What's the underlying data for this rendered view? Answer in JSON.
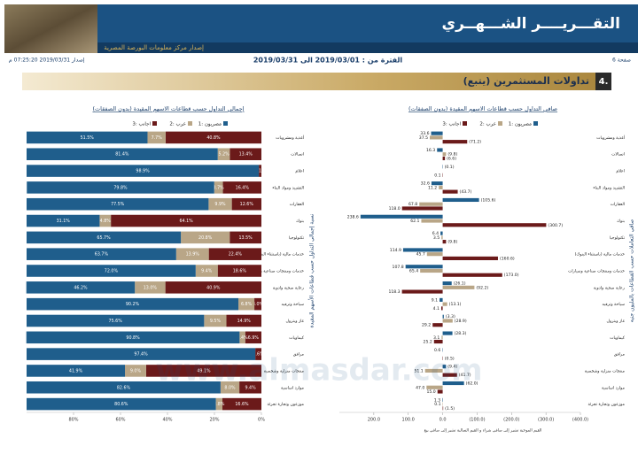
{
  "header": {
    "title": "التقـــريــــر الشـــهــري",
    "subtitle": "إصدار مركز معلومات البورصة المصرية",
    "page": "صفحة 6",
    "period": "الفترة من : 2019/03/01 الى 2019/03/31",
    "issued": "إصدار 2019/03/31 07:25:20 م",
    "section_number": "4.",
    "section": "تداولات المستثمرين (يتبع)"
  },
  "watermark": "www.almasdar.com",
  "chart_data": [
    {
      "type": "bar",
      "stacked": true,
      "title": "إجمالي التداول حسب قطاعات الاسهم المقيدة (بدون الصفقات)",
      "y_label": "نسبة إجمالي التداول حسب قطاعات الأسهم المقيدة",
      "categories": [
        "أغذية ومشروبات",
        "اتصالات",
        "اعلام",
        "التشييد ومواد البناء",
        "العقارات",
        "بنوك",
        "تكنولوجيا",
        "خدمات مالية (باستثناء البنوك)",
        "خدمات ومنتجات صناعية وسيارات",
        "رعاية صحية وادوية",
        "سياحة وترفيه",
        "غاز وبترول",
        "كيماويات",
        "مرافق",
        "منتجات منزلية وشخصية",
        "موارد اساسية",
        "موزعون وتجارة تجزئة"
      ],
      "series": [
        {
          "name": "مصريون :1",
          "color": "#1f5e8c",
          "values": [
            51.5,
            81.4,
            98.9,
            79.8,
            77.5,
            31.1,
            65.7,
            63.7,
            72.0,
            46.2,
            90.2,
            75.6,
            90.8,
            97.4,
            41.9,
            82.6,
            80.6
          ],
          "value_labels": [
            "51.5%",
            "81.4%",
            "98.9%",
            "79.8%",
            "77.5%",
            "31.1%",
            "65.7%",
            "63.7%",
            "72.0%",
            "46.2%",
            "90.2%",
            "75.6%",
            "90.8%",
            "97.4%",
            "41.9%",
            "82.6%",
            "80.6%"
          ]
        },
        {
          "name": "عرب :2",
          "color": "#b9a687",
          "values": [
            7.7,
            5.2,
            null,
            3.7,
            9.9,
            4.8,
            20.8,
            13.9,
            9.4,
            13.0,
            6.8,
            9.5,
            2.4,
            null,
            9.0,
            8.0,
            2.8
          ],
          "value_labels": [
            "7.7%",
            "5.2%",
            null,
            "3.7%",
            "9.9%",
            "4.8%",
            "20.8%",
            "13.9%",
            "9.4%",
            "13.0%",
            "6.8%",
            "9.5%",
            "2.4%",
            null,
            "9.0%",
            "8.0%",
            "2.8%"
          ]
        },
        {
          "name": "اجانب :3",
          "color": "#6b1a1a",
          "values": [
            40.8,
            13.4,
            1.1,
            16.4,
            12.6,
            64.1,
            13.5,
            22.4,
            18.6,
            40.9,
            3.0,
            14.9,
            6.9,
            2.6,
            49.1,
            9.4,
            16.6
          ],
          "value_labels": [
            "40.8%",
            "13.4%",
            "1.1%",
            "16.4%",
            "12.6%",
            "64.1%",
            "13.5%",
            "22.4%",
            "18.6%",
            "40.9%",
            "3.0%",
            "14.9%",
            "6.9%",
            "2.6%",
            "49.1%",
            "9.4%",
            "16.6%"
          ]
        }
      ],
      "xlim": [
        100,
        0
      ],
      "xticks": [
        {
          "value": 80,
          "label": "80%"
        },
        {
          "value": 60,
          "label": "60%"
        },
        {
          "value": 40,
          "label": "40%"
        },
        {
          "value": 20,
          "label": "20%"
        },
        {
          "value": 0,
          "label": "0%"
        }
      ]
    },
    {
      "type": "bar",
      "stacked": false,
      "title": "صافي التداول حسب قطاعات الاسهم المقيدة (بدون الصفقات)",
      "y_label": "صافي التعاملات حسب القطاعات بالمليون جنيه",
      "note": "القيم الموجبة تشير إلى صافي شراء و القيم السالبة تشير إلى صافي بيع",
      "categories": [
        "أغذية ومشروبات",
        "اتصالات",
        "اعلام",
        "التشييد ومواد البناء",
        "العقارات",
        "بنوك",
        "تكنولوجيا",
        "خدمات مالية (باستثناء البنوك)",
        "خدمات ومنتجات صناعية وسيارات",
        "رعاية صحية وادوية",
        "سياحة وترفيه",
        "غاز وبترول",
        "كيماويات",
        "مرافق",
        "منتجات منزلية وشخصية",
        "موارد اساسية",
        "موزعون وتجارة تجزئة"
      ],
      "series": [
        {
          "name": "مصريون :1",
          "color": "#1f5e8c",
          "values": [
            33.6,
            16.3,
            -0.1,
            32.6,
            -105.6,
            238.6,
            6.4,
            114.9,
            107.8,
            -26.1,
            9.1,
            -3.3,
            -28.3,
            0.6,
            -9.4,
            -62.0,
            1.3
          ],
          "value_labels": [
            "33.6",
            "16.3",
            "(0.1)",
            "32.6",
            "(105.6)",
            "238.6",
            "6.4",
            "114.9",
            "107.8",
            "(26.1)",
            "9.1",
            "(3.3)",
            "(28.3)",
            "0.6",
            "(9.4)",
            "(62.0)",
            "1.3"
          ]
        },
        {
          "name": "عرب :2",
          "color": "#b9a687",
          "values": [
            37.5,
            -9.8,
            null,
            11.2,
            67.8,
            62.1,
            3.5,
            45.7,
            65.4,
            -92.2,
            -13.1,
            -28.9,
            3.1,
            null,
            51.1,
            47.0,
            0.1
          ],
          "value_labels": [
            "37.5",
            "(9.8)",
            null,
            "11.2",
            "67.8",
            "62.1",
            "3.5",
            "45.7",
            "65.4",
            "(92.2)",
            "(13.1)",
            "(28.9)",
            "3.1",
            null,
            "51.1",
            "47.0",
            "0.1"
          ]
        },
        {
          "name": "اجانب :3",
          "color": "#6b1a1a",
          "values": [
            -71.2,
            -6.6,
            0.1,
            -43.7,
            118.0,
            -300.7,
            -9.8,
            -160.6,
            -173.0,
            118.3,
            4.1,
            29.2,
            25.2,
            -0.5,
            -41.7,
            15.0,
            -1.5
          ],
          "value_labels": [
            "(71.2)",
            "(6.6)",
            "0.1",
            "(43.7)",
            "118.0",
            "(300.7)",
            "(9.8)",
            "(160.6)",
            "(173.0)",
            "118.3",
            "4.1",
            "29.2",
            "25.2",
            "(0.5)",
            "(41.7)",
            "15.0",
            "(1.5)"
          ]
        }
      ],
      "xlim": [
        300,
        -400
      ],
      "xticks": [
        {
          "value": 200,
          "label": "200.0"
        },
        {
          "value": 100,
          "label": "100.0"
        },
        {
          "value": 0,
          "label": "0.0"
        },
        {
          "value": -100,
          "label": "(100.0)"
        },
        {
          "value": -200,
          "label": "(200.0)"
        },
        {
          "value": -300,
          "label": "(300.0)"
        },
        {
          "value": -400,
          "label": "(400.0)"
        }
      ]
    }
  ]
}
